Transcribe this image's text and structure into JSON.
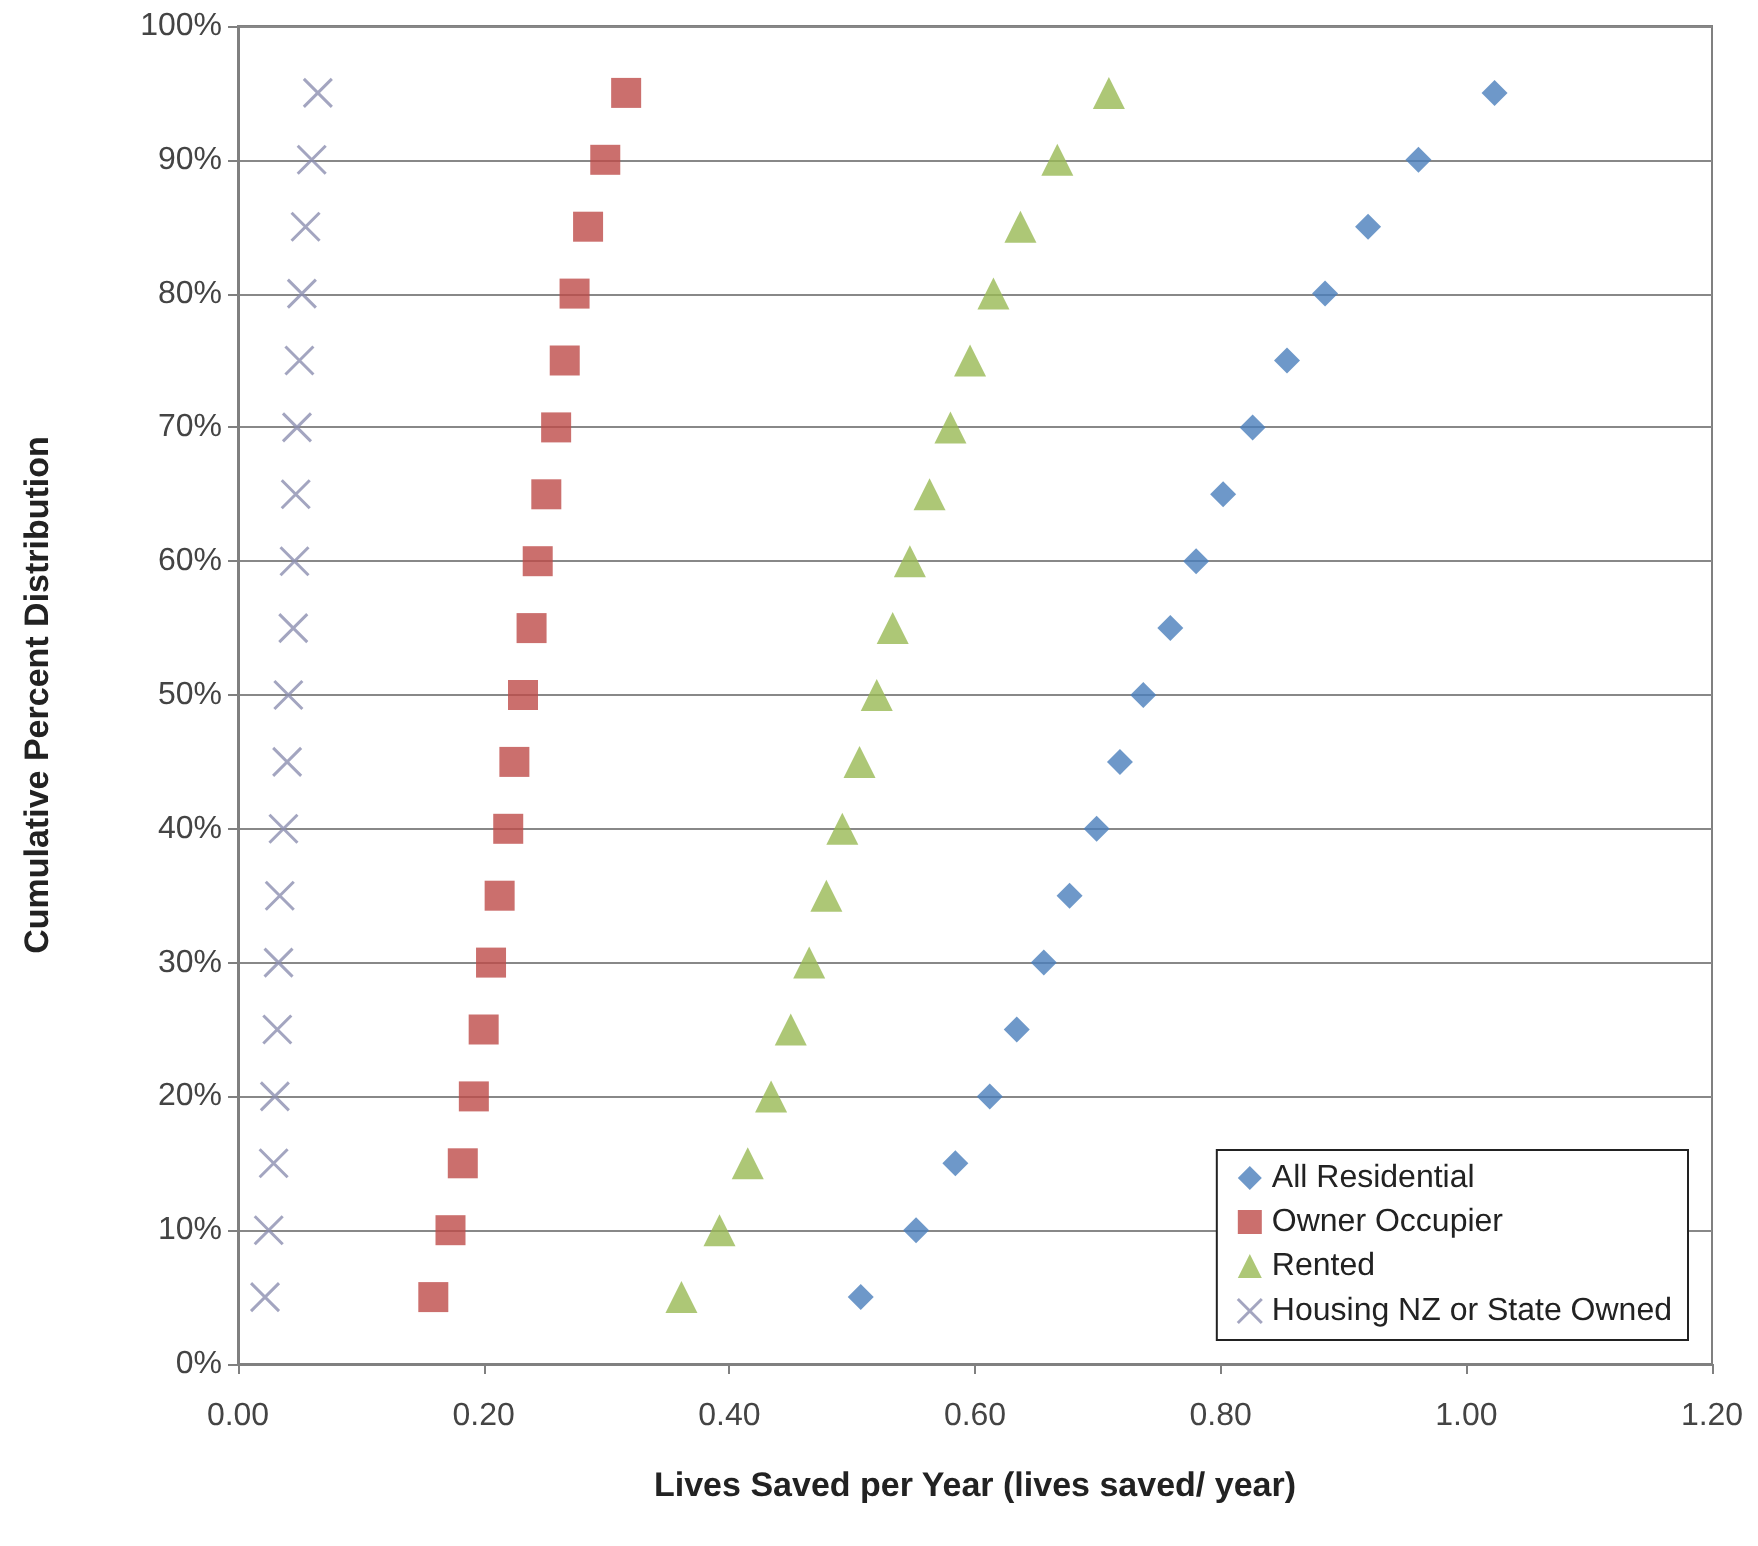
{
  "chart_data": {
    "type": "scatter",
    "xlabel": "Lives Saved per Year (lives saved/ year)",
    "ylabel": "Cumulative Percent Distribution",
    "xlim": [
      0,
      1.2
    ],
    "xticks": [
      {
        "value": 0,
        "label": "0.00"
      },
      {
        "value": 0.2,
        "label": "0.20"
      },
      {
        "value": 0.4,
        "label": "0.40"
      },
      {
        "value": 0.6,
        "label": "0.60"
      },
      {
        "value": 0.8,
        "label": "0.80"
      },
      {
        "value": 1,
        "label": "1.00"
      },
      {
        "value": 1.2,
        "label": "1.20"
      }
    ],
    "ylim": [
      0,
      100
    ],
    "yticks": [
      {
        "value": 0,
        "label": "0%"
      },
      {
        "value": 10,
        "label": "10%"
      },
      {
        "value": 20,
        "label": "20%"
      },
      {
        "value": 30,
        "label": "30%"
      },
      {
        "value": 40,
        "label": "40%"
      },
      {
        "value": 50,
        "label": "50%"
      },
      {
        "value": 60,
        "label": "60%"
      },
      {
        "value": 70,
        "label": "70%"
      },
      {
        "value": 80,
        "label": "80%"
      },
      {
        "value": 90,
        "label": "90%"
      },
      {
        "value": 100,
        "label": "100%"
      }
    ],
    "grid": "y",
    "legend": "bottom right",
    "series": [
      {
        "name": "All Residential",
        "color": "#4a7ebb",
        "marker": "diamond",
        "x": [
          0.507,
          0.552,
          0.584,
          0.612,
          0.634,
          0.656,
          0.677,
          0.699,
          0.718,
          0.737,
          0.759,
          0.78,
          0.802,
          0.826,
          0.854,
          0.885,
          0.92,
          0.961,
          1.023
        ],
        "values": [
          5,
          10,
          15,
          20,
          25,
          30,
          35,
          40,
          45,
          50,
          55,
          60,
          65,
          70,
          75,
          80,
          85,
          90,
          95
        ]
      },
      {
        "name": "Owner Occupier",
        "color": "#be4b48",
        "marker": "square",
        "x": [
          0.159,
          0.173,
          0.183,
          0.192,
          0.2,
          0.206,
          0.213,
          0.22,
          0.225,
          0.232,
          0.239,
          0.244,
          0.251,
          0.259,
          0.266,
          0.274,
          0.285,
          0.299,
          0.316
        ],
        "values": [
          5,
          10,
          15,
          20,
          25,
          30,
          35,
          40,
          45,
          50,
          55,
          60,
          65,
          70,
          75,
          80,
          85,
          90,
          95
        ]
      },
      {
        "name": "Rented",
        "color": "#98b954",
        "marker": "triangle",
        "x": [
          0.361,
          0.392,
          0.415,
          0.434,
          0.45,
          0.465,
          0.479,
          0.492,
          0.506,
          0.52,
          0.533,
          0.547,
          0.563,
          0.58,
          0.596,
          0.615,
          0.637,
          0.667,
          0.709
        ],
        "values": [
          5,
          10,
          15,
          20,
          25,
          30,
          35,
          40,
          45,
          50,
          55,
          60,
          65,
          70,
          75,
          80,
          85,
          90,
          95
        ]
      },
      {
        "name": "Housing NZ or State Owned",
        "color": "#8c8fb0",
        "marker": "cross",
        "x": [
          0.022,
          0.025,
          0.029,
          0.03,
          0.032,
          0.033,
          0.034,
          0.037,
          0.04,
          0.041,
          0.045,
          0.046,
          0.047,
          0.048,
          0.05,
          0.052,
          0.055,
          0.06,
          0.065
        ],
        "values": [
          5,
          10,
          15,
          20,
          25,
          30,
          35,
          40,
          45,
          50,
          55,
          60,
          65,
          70,
          75,
          80,
          85,
          90,
          95
        ]
      }
    ]
  }
}
